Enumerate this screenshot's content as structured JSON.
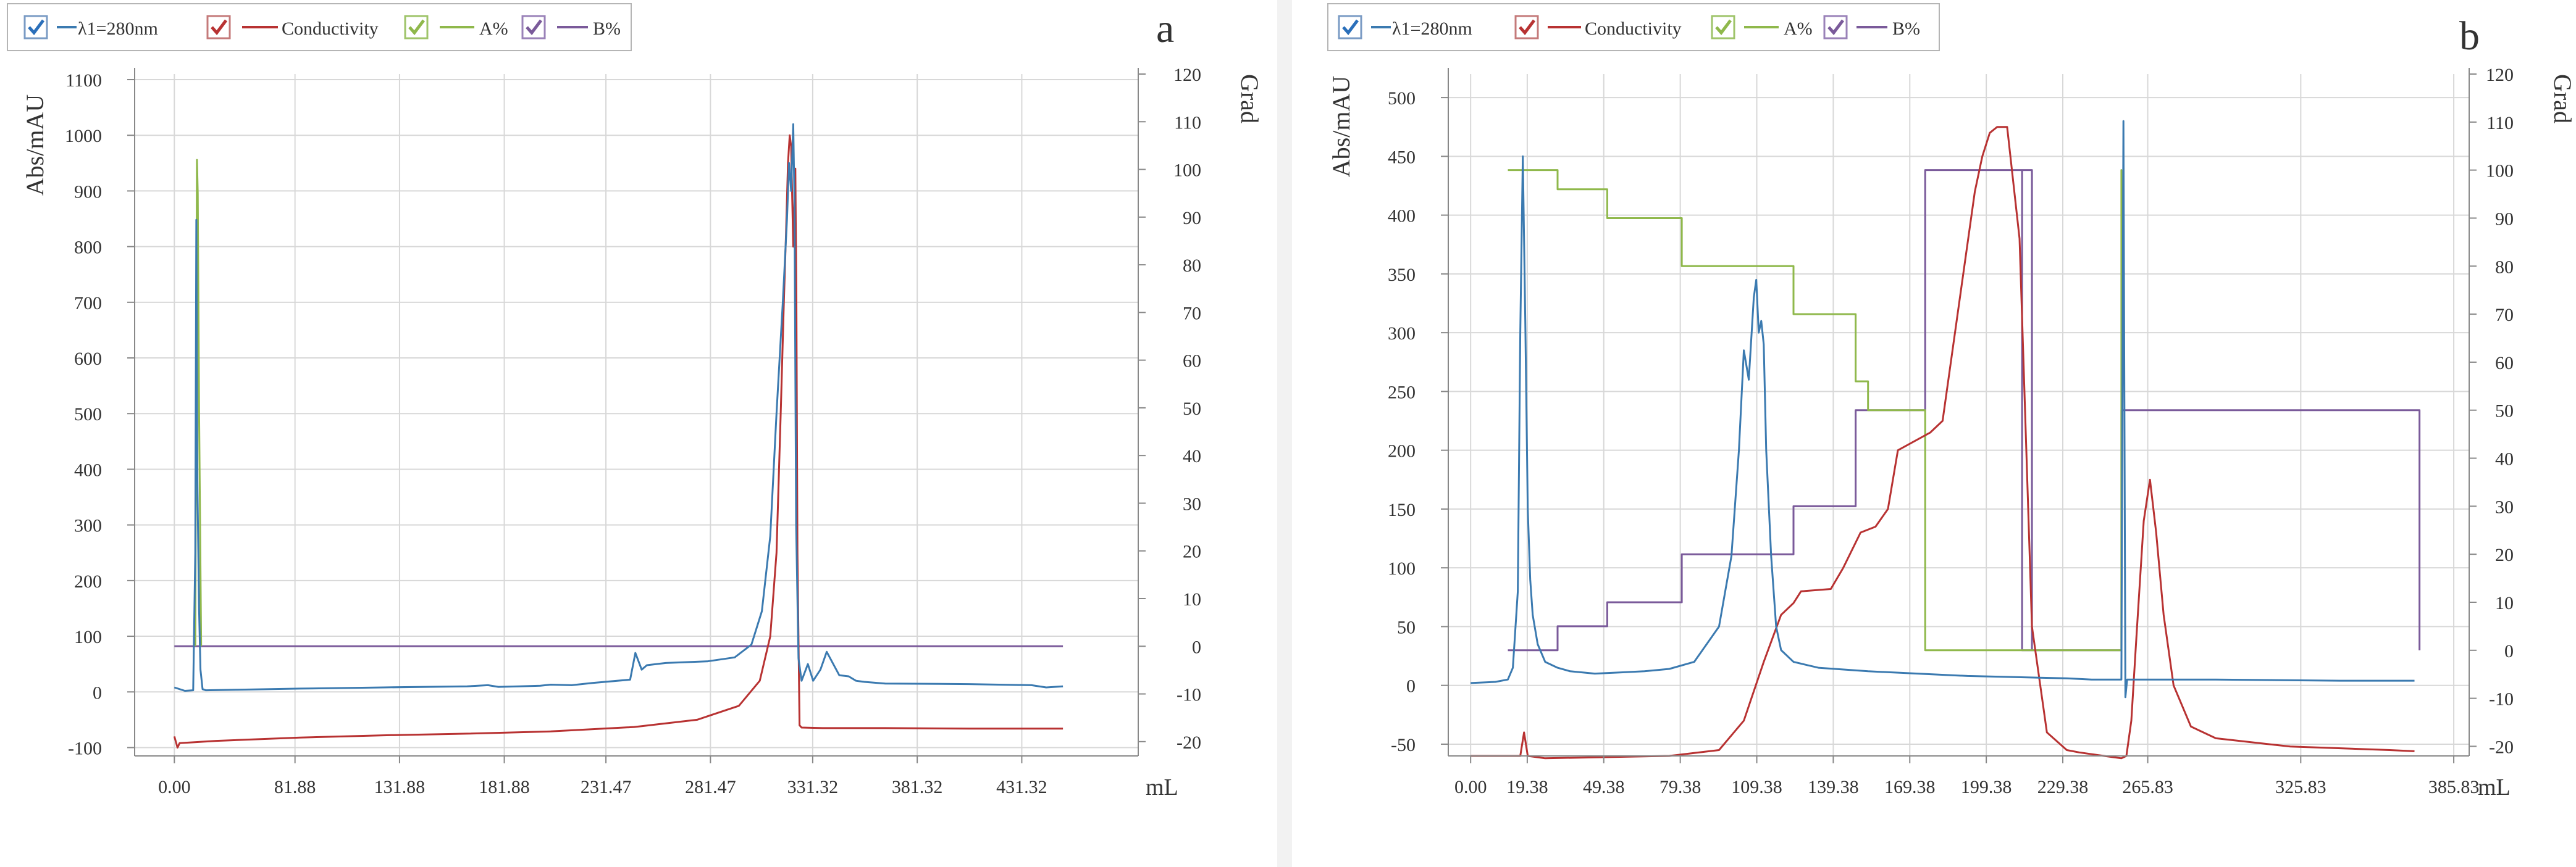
{
  "colors": {
    "blue": "#3b7ab0",
    "red": "#b83232",
    "green": "#8fb84b",
    "purple": "#7a5a9a",
    "check": "#2a6fba",
    "grid": "#d8d8d8",
    "axis": "#888888",
    "text": "#333333"
  },
  "chart_data": [
    {
      "type": "line",
      "panel_label": "a",
      "legend": [
        {
          "name": "λ1=280nm",
          "series": "abs",
          "checked": true
        },
        {
          "name": "Conductivity",
          "series": "cond",
          "checked": true
        },
        {
          "name": "A%",
          "series": "A",
          "checked": true
        },
        {
          "name": "B%",
          "series": "B",
          "checked": true
        }
      ],
      "ylabel": "Abs/mAU",
      "y2label": "Grad",
      "xlabel": "mL",
      "xlim": [
        -19,
        461
      ],
      "ylim": [
        -115,
        1110
      ],
      "y2lim": [
        -23,
        120
      ],
      "x_ticks": [
        "0.00",
        "81.88",
        "131.88",
        "181.88",
        "231.47",
        "281.47",
        "331.32",
        "381.32",
        "431.32"
      ],
      "x_tick_values": [
        0,
        57.7,
        107.7,
        157.8,
        206.4,
        256.4,
        305.3,
        355.3,
        405.3
      ],
      "y_ticks": [
        -100,
        0,
        100,
        200,
        300,
        400,
        500,
        600,
        700,
        800,
        900,
        1000,
        1100
      ],
      "y2_ticks": [
        -20,
        -10,
        0,
        10,
        20,
        30,
        40,
        50,
        60,
        70,
        80,
        90,
        100,
        110,
        120
      ],
      "series": [
        {
          "name": "λ1=280nm",
          "key": "abs",
          "axis": "left",
          "x": [
            0,
            5,
            9,
            10,
            10.5,
            11,
            11.8,
            12.5,
            13.5,
            15,
            30,
            60,
            100,
            140,
            150,
            155,
            165,
            175,
            180,
            190,
            200,
            218,
            220.5,
            223.5,
            226,
            235,
            255,
            268,
            276,
            281,
            285,
            288,
            291,
            293,
            294,
            295,
            296,
            296.6,
            297.4,
            298.5,
            300,
            303,
            305.5,
            309,
            312,
            318,
            322.5,
            326,
            330,
            340,
            380,
            410,
            417,
            425
          ],
          "y": [
            8,
            2,
            3,
            250,
            848,
            380,
            150,
            40,
            5,
            3,
            4,
            6,
            8,
            10,
            12,
            9,
            10,
            11,
            13,
            12,
            16,
            22,
            70,
            40,
            48,
            52,
            55,
            62,
            85,
            145,
            280,
            500,
            700,
            850,
            950,
            900,
            1020,
            880,
            300,
            60,
            20,
            50,
            20,
            40,
            72,
            30,
            28,
            20,
            18,
            15,
            14,
            12,
            8,
            10
          ]
        },
        {
          "name": "Conductivity",
          "key": "cond",
          "axis": "left",
          "x": [
            0,
            1.5,
            2.5,
            20,
            60,
            100,
            140,
            180,
            220,
            250,
            270,
            280,
            285,
            288,
            290,
            291.5,
            292.5,
            293.5,
            294.3,
            295,
            296,
            297,
            297.5,
            298,
            299,
            300,
            310,
            340,
            380,
            425
          ],
          "y": [
            -80,
            -100,
            -92,
            -88,
            -82,
            -78,
            -75,
            -71,
            -63,
            -50,
            -25,
            20,
            100,
            250,
            500,
            700,
            820,
            950,
            1000,
            980,
            800,
            940,
            700,
            250,
            -60,
            -64,
            -65,
            -65,
            -66,
            -66
          ]
        },
        {
          "name": "A%",
          "key": "A",
          "axis": "right",
          "x": [
            10,
            10.8,
            11.2,
            11.8,
            12.8
          ],
          "y": [
            0,
            102,
            95,
            50,
            0
          ]
        },
        {
          "name": "B%",
          "key": "B",
          "axis": "right",
          "x": [
            0,
            425
          ],
          "y": [
            0,
            0
          ]
        }
      ]
    },
    {
      "type": "line",
      "panel_label": "b",
      "legend": [
        {
          "name": "λ1=280nm",
          "series": "abs",
          "checked": true
        },
        {
          "name": "Conductivity",
          "series": "cond",
          "checked": true
        },
        {
          "name": "A%",
          "series": "A",
          "checked": true
        },
        {
          "name": "B%",
          "series": "B",
          "checked": true
        }
      ],
      "ylabel": "Abs/mAU",
      "y2label": "Grad",
      "xlabel": "mL",
      "xlim": [
        -9,
        402
      ],
      "ylim": [
        -60,
        520
      ],
      "y2lim": [
        -22,
        120
      ],
      "x_ticks": [
        "0.00",
        "19.38",
        "49.38",
        "79.38",
        "109.38",
        "139.38",
        "169.38",
        "199.38",
        "229.38",
        "265.83",
        "325.83",
        "385.83"
      ],
      "x_tick_values": [
        0,
        22.8,
        53.6,
        84.4,
        115.2,
        146,
        176.8,
        207.6,
        238.4,
        272.6,
        334.2,
        395.8
      ],
      "y_ticks": [
        -50,
        0,
        50,
        100,
        150,
        200,
        250,
        300,
        350,
        400,
        450,
        500
      ],
      "y2_ticks": [
        -20,
        -10,
        0,
        10,
        20,
        30,
        40,
        50,
        60,
        70,
        80,
        90,
        100,
        110,
        120
      ],
      "series": [
        {
          "name": "λ1=280nm",
          "key": "abs",
          "axis": "left",
          "x": [
            0,
            10,
            15,
            17,
            19,
            20,
            21,
            22,
            23,
            24,
            25,
            27,
            30,
            35,
            40,
            50,
            60,
            70,
            80,
            90,
            100,
            105,
            108,
            110,
            112,
            114,
            115,
            116,
            117,
            118,
            119,
            121,
            123,
            125,
            130,
            140,
            160,
            180,
            200,
            240,
            250,
            262,
            262.8,
            263.6,
            264.3,
            270,
            300,
            350,
            380
          ],
          "y": [
            2,
            3,
            5,
            15,
            80,
            300,
            450,
            310,
            150,
            90,
            60,
            35,
            20,
            15,
            12,
            10,
            11,
            12,
            14,
            20,
            50,
            110,
            200,
            285,
            260,
            330,
            345,
            300,
            310,
            290,
            200,
            110,
            50,
            30,
            20,
            15,
            12,
            10,
            8,
            6,
            5,
            5,
            480,
            -10,
            5,
            5,
            5,
            4,
            4
          ]
        },
        {
          "name": "Conductivity",
          "key": "cond",
          "axis": "left",
          "x": [
            0,
            20,
            21.5,
            23,
            30,
            80,
            100,
            110,
            118,
            125,
            130,
            133,
            145,
            150,
            157,
            163,
            168,
            172,
            185,
            190,
            197,
            203,
            206,
            209,
            212,
            216,
            221,
            226,
            232,
            240,
            245,
            255,
            262,
            264,
            266,
            268,
            271,
            273.5,
            276,
            279,
            283,
            290,
            300,
            330,
            370,
            380
          ],
          "y": [
            -60,
            -60,
            -40,
            -60,
            -62,
            -60,
            -55,
            -30,
            20,
            60,
            70,
            80,
            82,
            100,
            130,
            135,
            150,
            200,
            215,
            225,
            330,
            420,
            450,
            470,
            475,
            475,
            380,
            50,
            -40,
            -55,
            -57,
            -60,
            -62,
            -60,
            -30,
            40,
            140,
            175,
            130,
            60,
            0,
            -35,
            -45,
            -52,
            -55,
            -56
          ]
        },
        {
          "name": "A%",
          "key": "A",
          "axis": "right",
          "x": [
            15,
            35,
            35,
            55,
            55,
            85,
            85,
            130,
            130,
            155,
            155,
            160,
            160,
            183,
            183,
            262,
            262,
            262.3
          ],
          "y": [
            100,
            100,
            96,
            96,
            90,
            90,
            80,
            80,
            70,
            70,
            56,
            56,
            50,
            50,
            0,
            0,
            100,
            60
          ]
        },
        {
          "name": "B%",
          "key": "B",
          "axis": "right",
          "x": [
            15,
            35,
            35,
            55,
            55,
            85,
            85,
            130,
            130,
            155,
            155,
            160,
            160,
            183,
            183,
            222,
            222,
            226,
            226,
            222,
            222,
            226,
            226,
            262,
            262,
            382,
            382
          ],
          "y": [
            0,
            0,
            5,
            5,
            10,
            10,
            20,
            20,
            30,
            30,
            50,
            50,
            50,
            50,
            100,
            100,
            0,
            0,
            100,
            100,
            0,
            0,
            0,
            0,
            50,
            50,
            0
          ]
        }
      ]
    }
  ]
}
